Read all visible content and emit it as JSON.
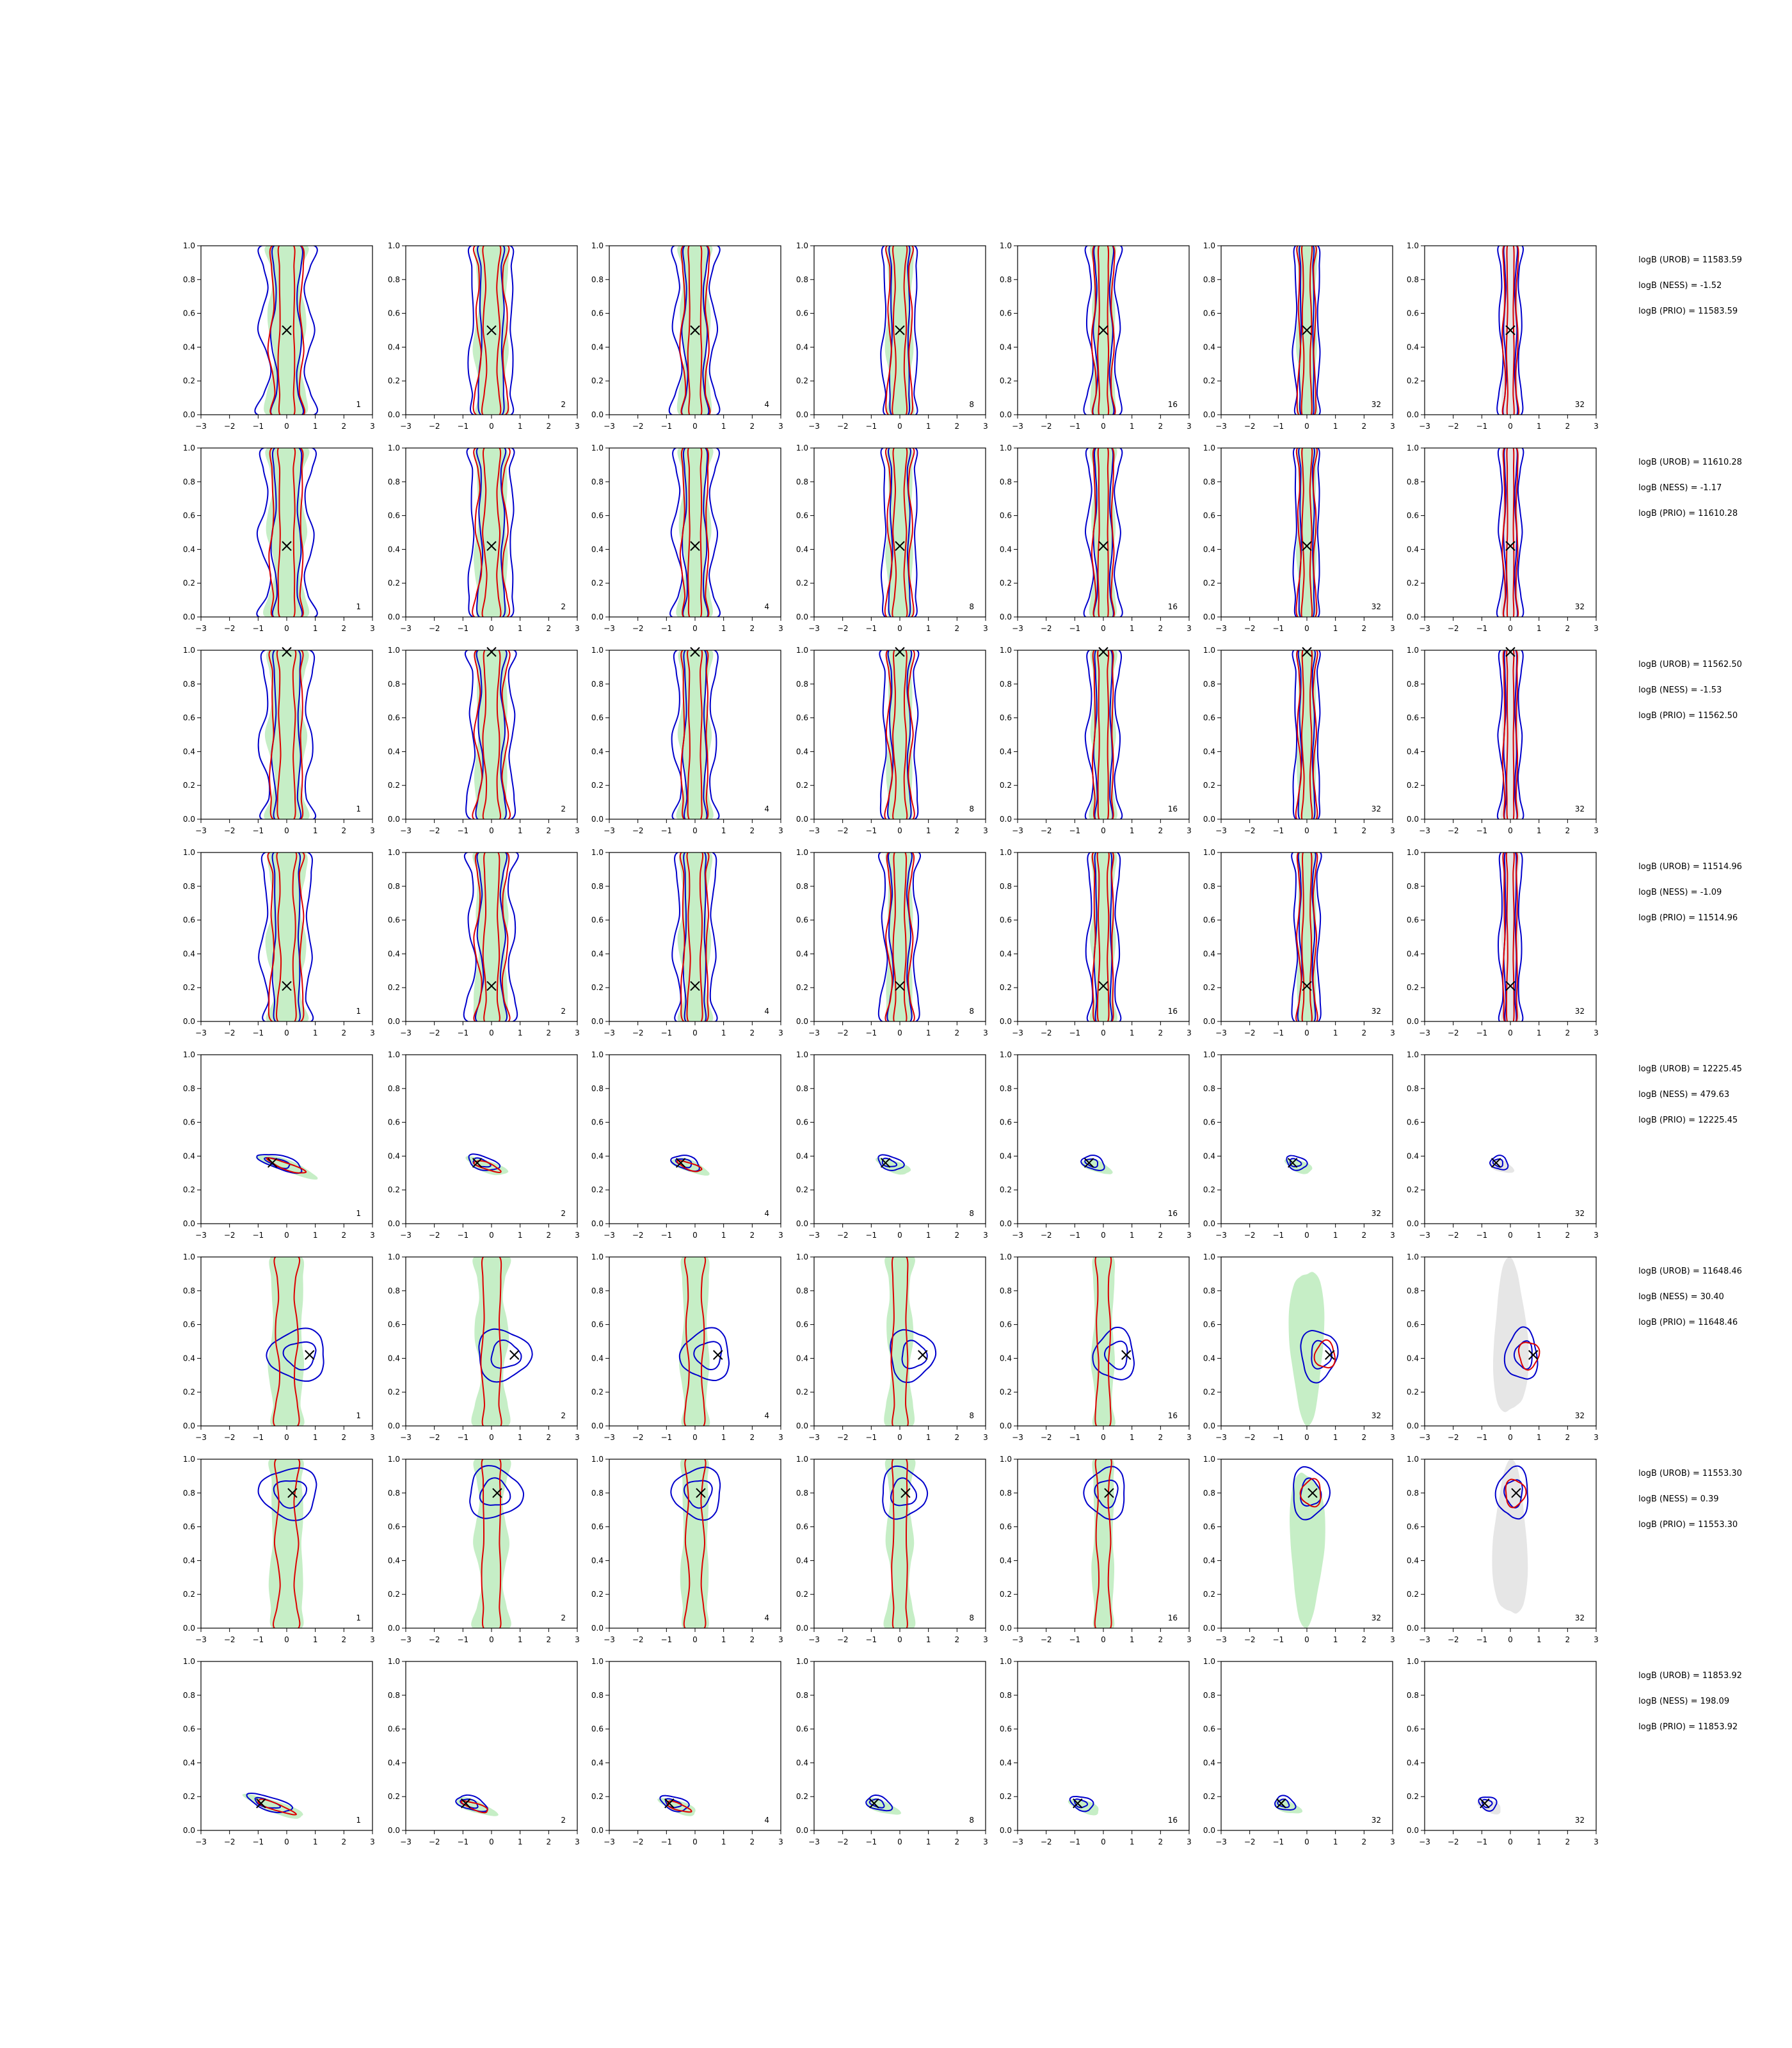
{
  "figure": {
    "columns": [
      "1",
      "2",
      "4",
      "8",
      "16",
      "32",
      "32"
    ],
    "x_ticks": [
      -3,
      -2,
      -1,
      0,
      1,
      2,
      3
    ],
    "y_ticks": [
      0.0,
      0.2,
      0.4,
      0.6,
      0.8,
      1.0
    ],
    "colors": {
      "prior": "#e6e6e6",
      "reference_fill": "#c6eec6",
      "model_a": "#0000cc",
      "model_b": "#dd0000",
      "true_value_marker": "#000000"
    }
  },
  "chart_data": [
    {
      "type": "contour",
      "row": 1,
      "true_value": {
        "x": 0.0,
        "y": 0.5
      },
      "shape": "vertical",
      "logB": {
        "UROB": "logB (UROB) = 11583.59",
        "NESS": "logB (NESS) = -1.52",
        "PRIO": "logB (PRIO) = 11583.59"
      },
      "xlim": [
        -3,
        3
      ],
      "ylim": [
        0,
        1
      ]
    },
    {
      "type": "contour",
      "row": 2,
      "true_value": {
        "x": 0.0,
        "y": 0.42
      },
      "shape": "vertical",
      "logB": {
        "UROB": "logB (UROB) = 11610.28",
        "NESS": "logB (NESS) = -1.17",
        "PRIO": "logB (PRIO) = 11610.28"
      },
      "xlim": [
        -3,
        3
      ],
      "ylim": [
        0,
        1
      ]
    },
    {
      "type": "contour",
      "row": 3,
      "true_value": {
        "x": 0.0,
        "y": 0.99
      },
      "shape": "vertical",
      "logB": {
        "UROB": "logB (UROB) = 11562.50",
        "NESS": "logB (NESS) = -1.53",
        "PRIO": "logB (PRIO) = 11562.50"
      },
      "xlim": [
        -3,
        3
      ],
      "ylim": [
        0,
        1
      ]
    },
    {
      "type": "contour",
      "row": 4,
      "true_value": {
        "x": 0.0,
        "y": 0.21
      },
      "shape": "vertical",
      "logB": {
        "UROB": "logB (UROB) = 11514.96",
        "NESS": "logB (NESS) = -1.09",
        "PRIO": "logB (PRIO) = 11514.96"
      },
      "xlim": [
        -3,
        3
      ],
      "ylim": [
        0,
        1
      ]
    },
    {
      "type": "contour",
      "row": 5,
      "true_value": {
        "x": -0.5,
        "y": 0.36
      },
      "shape": "tilted",
      "logB": {
        "UROB": "logB (UROB) = 12225.45",
        "NESS": "logB (NESS) = 479.63",
        "PRIO": "logB (PRIO) = 12225.45"
      },
      "xlim": [
        -3,
        3
      ],
      "ylim": [
        0,
        1
      ]
    },
    {
      "type": "contour",
      "row": 6,
      "true_value": {
        "x": 0.8,
        "y": 0.42
      },
      "shape": "blob",
      "logB": {
        "UROB": "logB (UROB) = 11648.46",
        "NESS": "logB (NESS) = 30.40",
        "PRIO": "logB (PRIO) = 11648.46"
      },
      "xlim": [
        -3,
        3
      ],
      "ylim": [
        0,
        1
      ]
    },
    {
      "type": "contour",
      "row": 7,
      "true_value": {
        "x": 0.2,
        "y": 0.8
      },
      "shape": "blob-high",
      "logB": {
        "UROB": "logB (UROB) = 11553.30",
        "NESS": "logB (NESS) = 0.39",
        "PRIO": "logB (PRIO) = 11553.30"
      },
      "xlim": [
        -3,
        3
      ],
      "ylim": [
        0,
        1
      ]
    },
    {
      "type": "contour",
      "row": 8,
      "true_value": {
        "x": -0.9,
        "y": 0.16
      },
      "shape": "tilted-low",
      "logB": {
        "UROB": "logB (UROB) = 11853.92",
        "NESS": "logB (NESS) = 198.09",
        "PRIO": "logB (PRIO) = 11853.92"
      },
      "xlim": [
        -3,
        3
      ],
      "ylim": [
        0,
        1
      ]
    }
  ]
}
